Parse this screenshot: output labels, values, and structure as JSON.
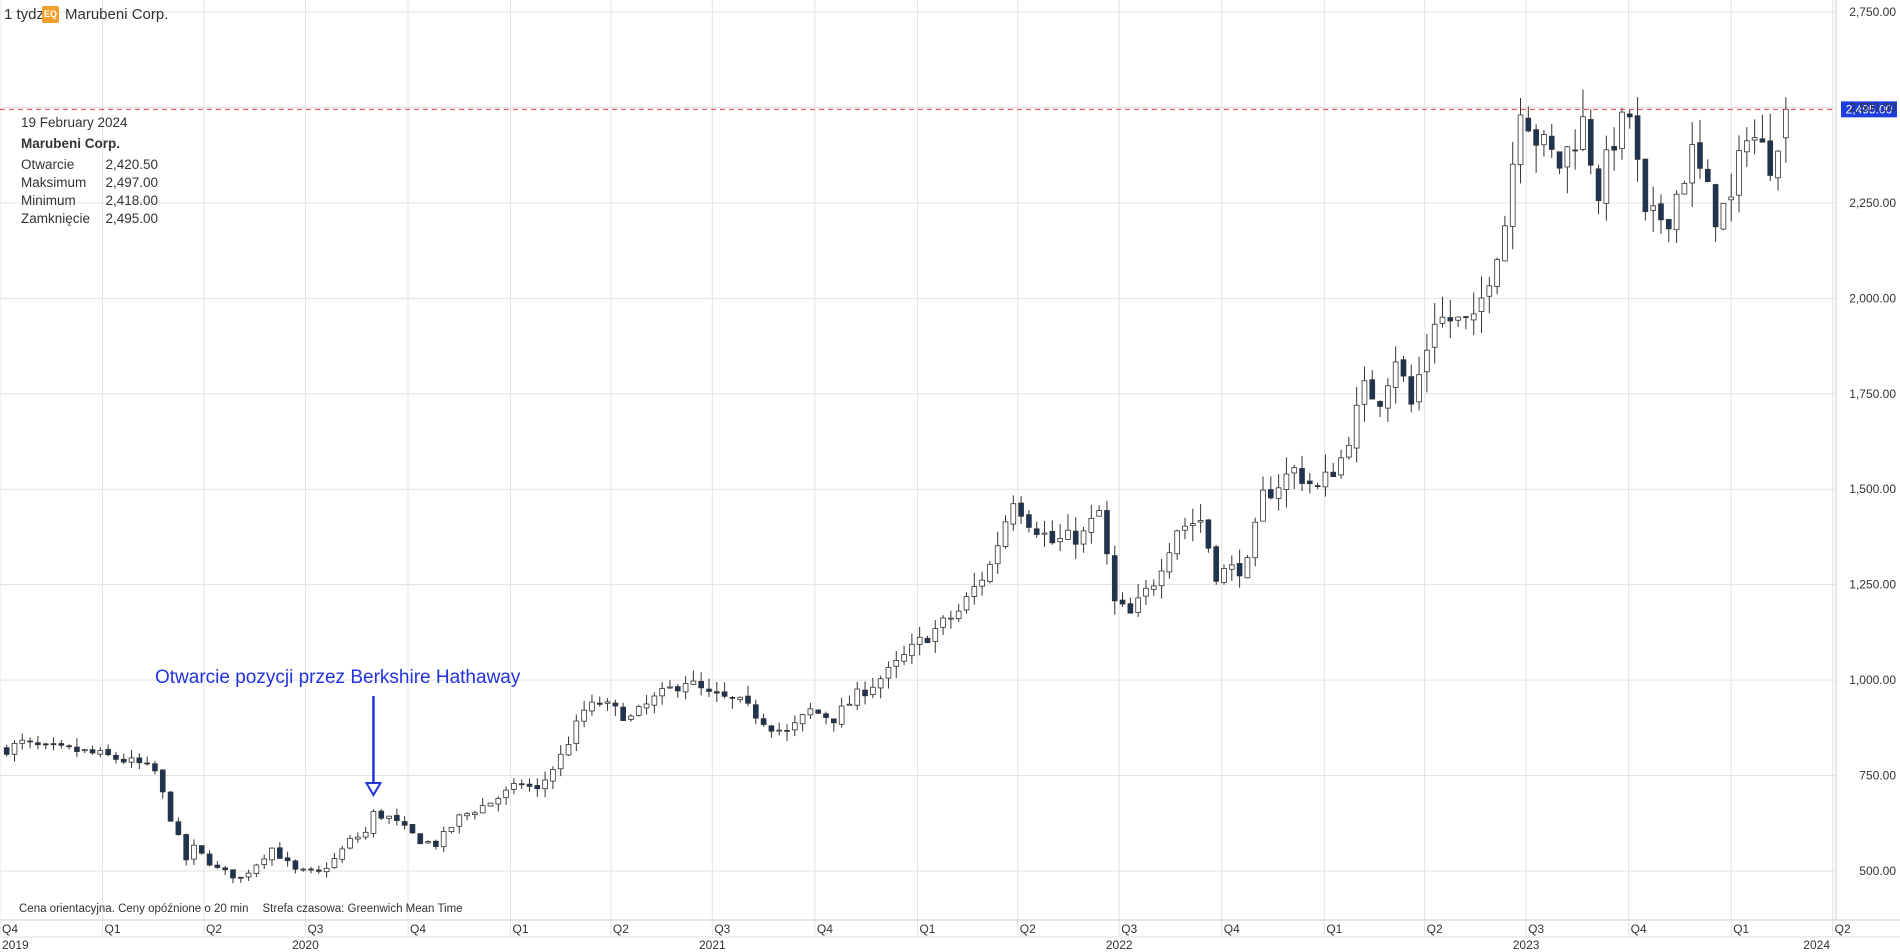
{
  "header": {
    "interval": "1 tydzień",
    "badge": "EQ",
    "instrument": "Marubeni Corp."
  },
  "info": {
    "date": "19 February 2024",
    "name": "Marubeni Corp.",
    "rows": [
      {
        "label": "Otwarcie",
        "value": "2,420.50"
      },
      {
        "label": "Maksimum",
        "value": "2,497.00"
      },
      {
        "label": "Minimum",
        "value": "2,418.00"
      },
      {
        "label": "Zamknięcie",
        "value": "2,495.00"
      }
    ]
  },
  "footnote": {
    "delay": "Cena orientacyjna. Ceny opóźnione o 20 min",
    "timezone": "Strefa czasowa: Greenwich Mean Time"
  },
  "annotation": {
    "text": "Otwarcie pozycji przez Berkshire Hathaway",
    "date": "2020-08-31"
  },
  "colors": {
    "down_candle": "#1c3557",
    "up_candle": "#ffffff",
    "candle_outline": "#333333",
    "annotation": "#2233dd",
    "last_price_line": "#e04040",
    "last_price_tag": "#1d3ddd",
    "grid": "#e3e3e3",
    "badge": "#f0a02b"
  },
  "chart_data": {
    "type": "candlestick",
    "title": "Marubeni Corp.",
    "interval": "1 tydzień",
    "x_range": [
      "2019-10-01",
      "2024-04-04"
    ],
    "ylim": [
      440,
      2780
    ],
    "y_ticks": [
      "500.00",
      "750.00",
      "1,000.00",
      "1,250.00",
      "1,500.00",
      "1,750.00",
      "2,000.00",
      "2,250.00",
      "2,500.00",
      "2,750.00"
    ],
    "y_tick_values": [
      500,
      750,
      1000,
      1250,
      1500,
      1750,
      2000,
      2250,
      2500,
      2750
    ],
    "last_price": {
      "value": 2495,
      "label": "2,495.00"
    },
    "quarter_ticks": [
      {
        "date": "2019-10-01",
        "label": "Q4"
      },
      {
        "date": "2020-01-01",
        "label": "Q1"
      },
      {
        "date": "2020-04-01",
        "label": "Q2"
      },
      {
        "date": "2020-07-01",
        "label": "Q3"
      },
      {
        "date": "2020-10-01",
        "label": "Q4"
      },
      {
        "date": "2021-01-01",
        "label": "Q1"
      },
      {
        "date": "2021-04-01",
        "label": "Q2"
      },
      {
        "date": "2021-07-01",
        "label": "Q3"
      },
      {
        "date": "2021-10-01",
        "label": "Q4"
      },
      {
        "date": "2022-01-01",
        "label": "Q1"
      },
      {
        "date": "2022-04-01",
        "label": "Q2"
      },
      {
        "date": "2022-07-01",
        "label": "Q3"
      },
      {
        "date": "2022-10-01",
        "label": "Q4"
      },
      {
        "date": "2023-01-01",
        "label": "Q1"
      },
      {
        "date": "2023-04-01",
        "label": "Q2"
      },
      {
        "date": "2023-07-01",
        "label": "Q3"
      },
      {
        "date": "2023-10-01",
        "label": "Q4"
      },
      {
        "date": "2024-01-01",
        "label": "Q1"
      },
      {
        "date": "2024-04-01",
        "label": "Q2"
      }
    ],
    "year_ticks": [
      {
        "date": "2019-10-01",
        "label": "2019"
      },
      {
        "date": "2020-07-01",
        "label": "2020"
      },
      {
        "date": "2021-07-01",
        "label": "2021"
      },
      {
        "date": "2022-07-01",
        "label": "2022"
      },
      {
        "date": "2023-07-01",
        "label": "2023"
      },
      {
        "date": "2024-04-01",
        "label": "2024"
      }
    ],
    "anchors": [
      {
        "date": "2019-10-07",
        "close": 820
      },
      {
        "date": "2019-10-21",
        "close": 835
      },
      {
        "date": "2019-11-11",
        "close": 820
      },
      {
        "date": "2019-12-09",
        "close": 815
      },
      {
        "date": "2020-01-06",
        "close": 800
      },
      {
        "date": "2020-02-03",
        "close": 780
      },
      {
        "date": "2020-02-17",
        "close": 760
      },
      {
        "date": "2020-03-02",
        "close": 640
      },
      {
        "date": "2020-03-16",
        "close": 530
      },
      {
        "date": "2020-03-23",
        "close": 560
      },
      {
        "date": "2020-04-13",
        "close": 505
      },
      {
        "date": "2020-05-04",
        "close": 480
      },
      {
        "date": "2020-06-01",
        "close": 560
      },
      {
        "date": "2020-06-22",
        "close": 500
      },
      {
        "date": "2020-07-13",
        "close": 495
      },
      {
        "date": "2020-07-27",
        "close": 530
      },
      {
        "date": "2020-08-10",
        "close": 580
      },
      {
        "date": "2020-08-24",
        "close": 600
      },
      {
        "date": "2020-08-31",
        "close": 650
      },
      {
        "date": "2020-09-14",
        "close": 640
      },
      {
        "date": "2020-10-12",
        "close": 580
      },
      {
        "date": "2020-10-26",
        "close": 570
      },
      {
        "date": "2020-11-16",
        "close": 640
      },
      {
        "date": "2020-12-14",
        "close": 680
      },
      {
        "date": "2021-01-11",
        "close": 730
      },
      {
        "date": "2021-01-25",
        "close": 710
      },
      {
        "date": "2021-02-15",
        "close": 800
      },
      {
        "date": "2021-03-08",
        "close": 920
      },
      {
        "date": "2021-03-22",
        "close": 940
      },
      {
        "date": "2021-04-19",
        "close": 900
      },
      {
        "date": "2021-05-10",
        "close": 950
      },
      {
        "date": "2021-06-07",
        "close": 1000
      },
      {
        "date": "2021-06-28",
        "close": 960
      },
      {
        "date": "2021-07-26",
        "close": 940
      },
      {
        "date": "2021-08-23",
        "close": 880
      },
      {
        "date": "2021-09-06",
        "close": 860
      },
      {
        "date": "2021-09-27",
        "close": 920
      },
      {
        "date": "2021-10-18",
        "close": 900
      },
      {
        "date": "2021-11-08",
        "close": 960
      },
      {
        "date": "2021-12-06",
        "close": 1020
      },
      {
        "date": "2022-01-03",
        "close": 1100
      },
      {
        "date": "2022-02-07",
        "close": 1180
      },
      {
        "date": "2022-03-07",
        "close": 1300
      },
      {
        "date": "2022-03-28",
        "close": 1480
      },
      {
        "date": "2022-04-11",
        "close": 1420
      },
      {
        "date": "2022-05-02",
        "close": 1360
      },
      {
        "date": "2022-05-30",
        "close": 1380
      },
      {
        "date": "2022-06-13",
        "close": 1440
      },
      {
        "date": "2022-06-27",
        "close": 1200
      },
      {
        "date": "2022-07-11",
        "close": 1170
      },
      {
        "date": "2022-08-01",
        "close": 1260
      },
      {
        "date": "2022-08-22",
        "close": 1400
      },
      {
        "date": "2022-09-12",
        "close": 1420
      },
      {
        "date": "2022-09-26",
        "close": 1280
      },
      {
        "date": "2022-10-24",
        "close": 1300
      },
      {
        "date": "2022-11-07",
        "close": 1480
      },
      {
        "date": "2022-12-05",
        "close": 1550
      },
      {
        "date": "2022-12-26",
        "close": 1500
      },
      {
        "date": "2023-01-16",
        "close": 1580
      },
      {
        "date": "2023-02-06",
        "close": 1760
      },
      {
        "date": "2023-02-20",
        "close": 1740
      },
      {
        "date": "2023-03-06",
        "close": 1850
      },
      {
        "date": "2023-03-20",
        "close": 1720
      },
      {
        "date": "2023-04-10",
        "close": 1950
      },
      {
        "date": "2023-05-15",
        "close": 1930
      },
      {
        "date": "2023-06-12",
        "close": 2200
      },
      {
        "date": "2023-06-26",
        "close": 2520
      },
      {
        "date": "2023-07-10",
        "close": 2420
      },
      {
        "date": "2023-07-31",
        "close": 2350
      },
      {
        "date": "2023-08-21",
        "close": 2460
      },
      {
        "date": "2023-09-04",
        "close": 2280
      },
      {
        "date": "2023-09-18",
        "close": 2420
      },
      {
        "date": "2023-10-02",
        "close": 2480
      },
      {
        "date": "2023-10-16",
        "close": 2200
      },
      {
        "date": "2023-11-06",
        "close": 2220
      },
      {
        "date": "2023-11-27",
        "close": 2380
      },
      {
        "date": "2023-12-18",
        "close": 2220
      },
      {
        "date": "2024-01-01",
        "close": 2250
      },
      {
        "date": "2024-01-15",
        "close": 2450
      },
      {
        "date": "2024-02-05",
        "close": 2360
      },
      {
        "date": "2024-02-19",
        "close": 2495
      }
    ]
  }
}
